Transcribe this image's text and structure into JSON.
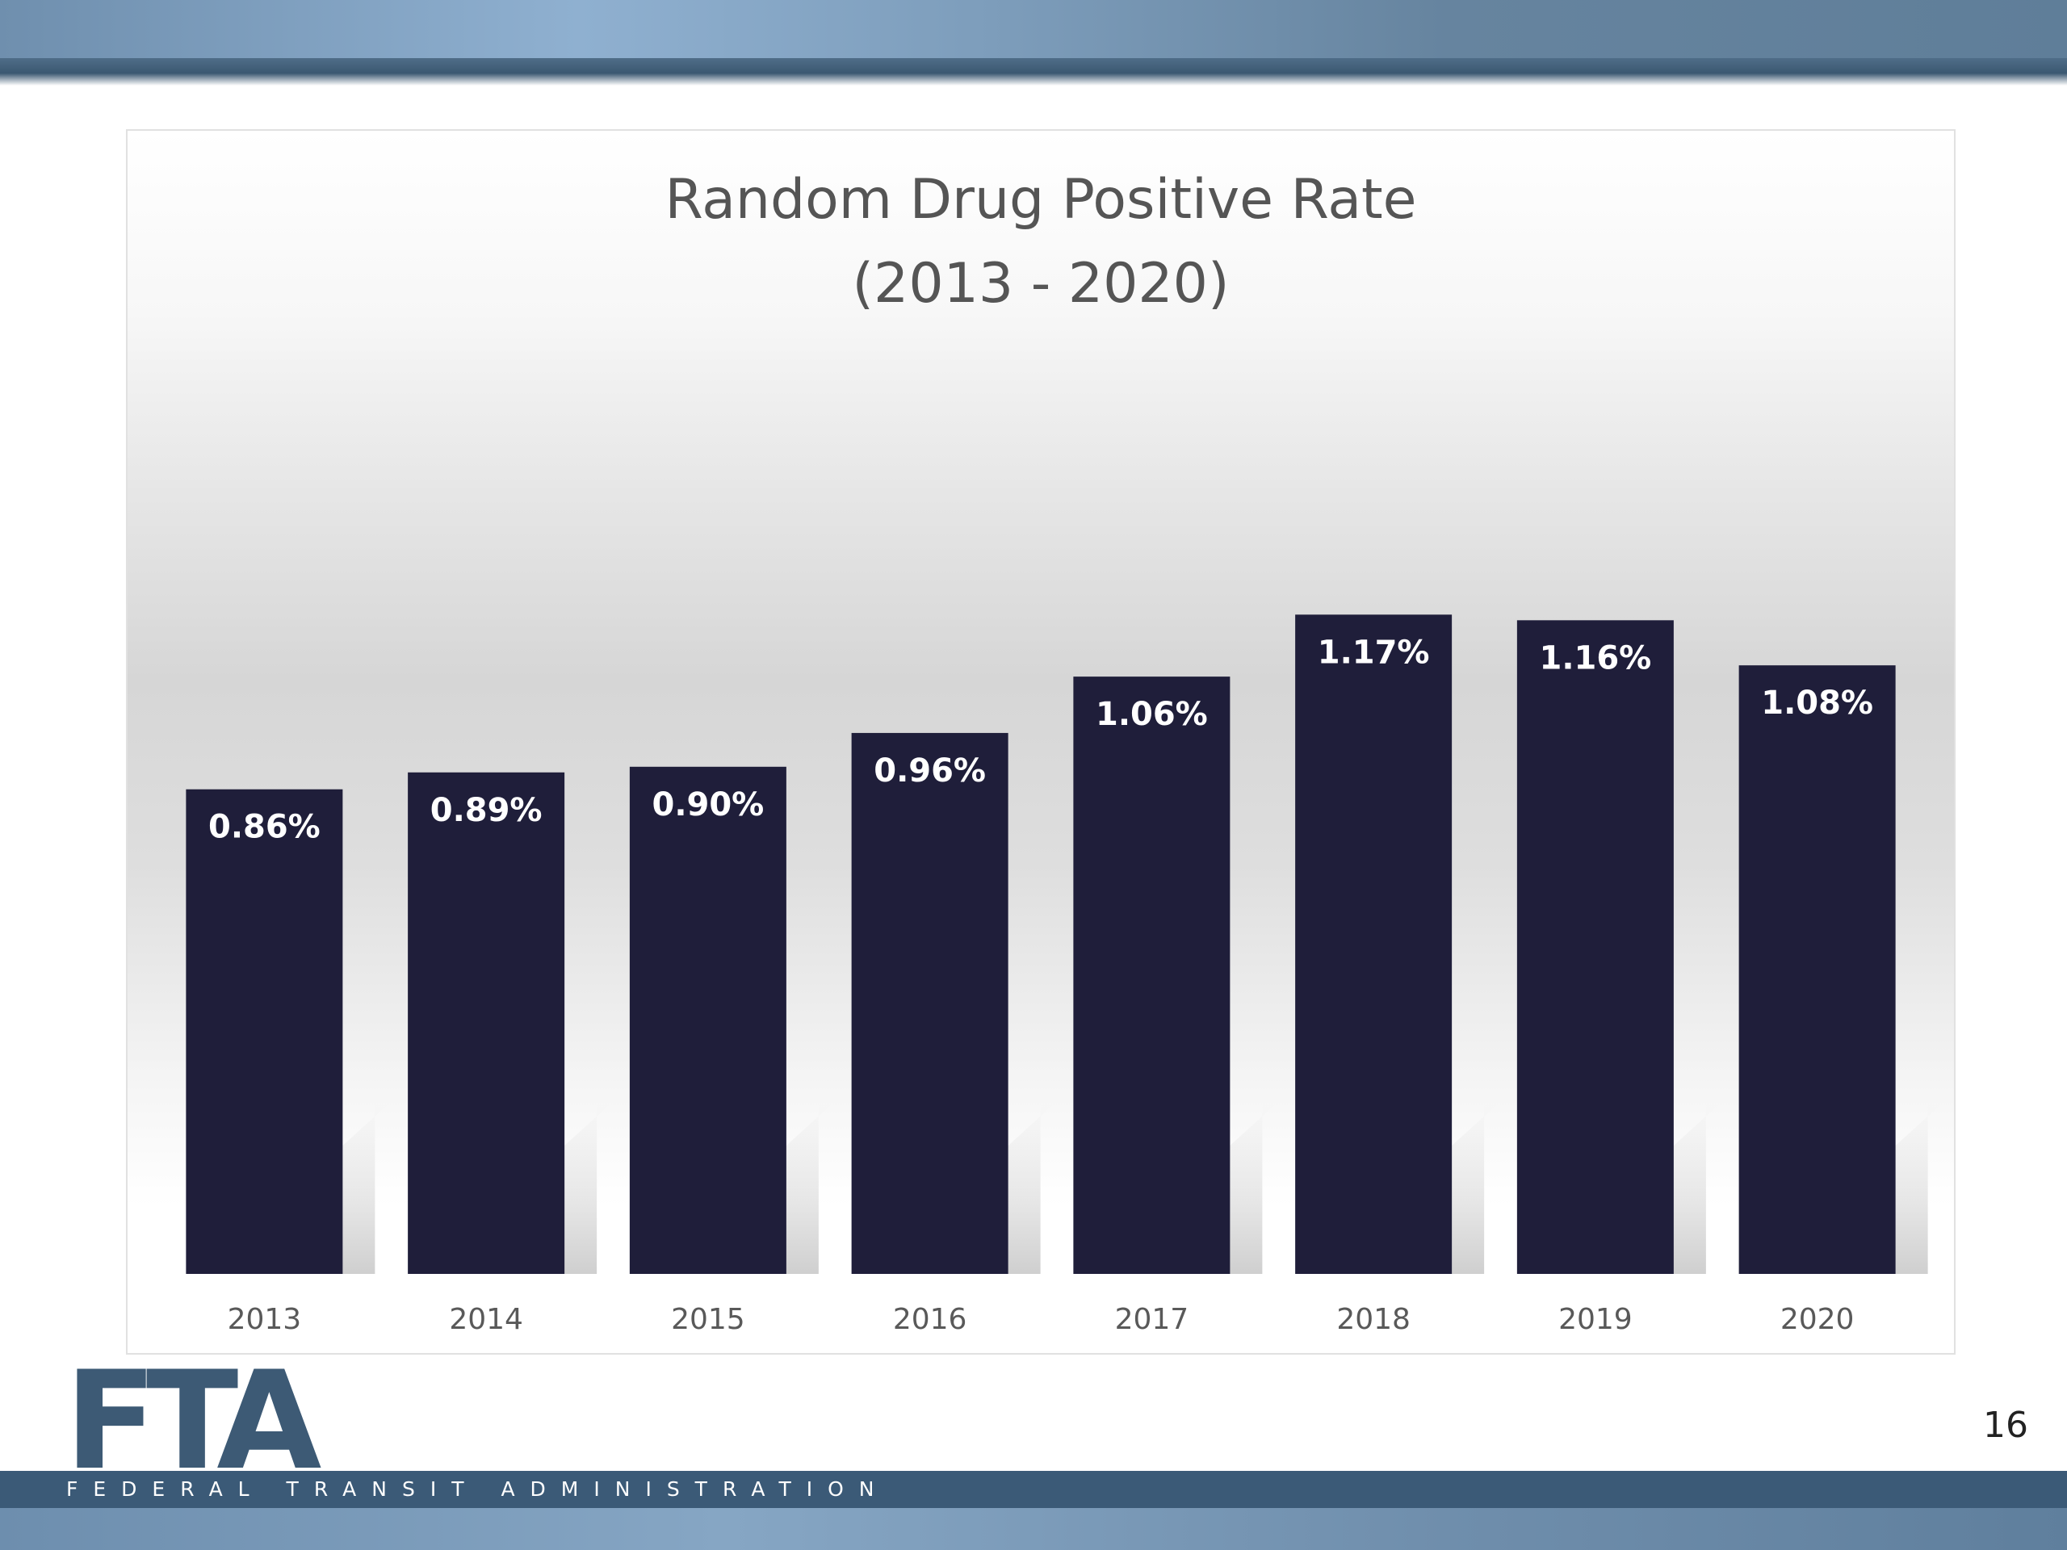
{
  "slide": {
    "logo_text": "FTA",
    "logo_subtitle": "FEDERAL TRANSIT ADMINISTRATION",
    "page_number": "16",
    "colors": {
      "bar": "#1f1e3a",
      "banner": "#6f8fae",
      "footer": "#3b5a77",
      "logo": "#3d5a75"
    }
  },
  "chart_data": {
    "type": "bar",
    "title": "Random Drug Positive Rate",
    "subtitle": "(2013 - 2020)",
    "categories": [
      "2013",
      "2014",
      "2015",
      "2016",
      "2017",
      "2018",
      "2019",
      "2020"
    ],
    "values": [
      0.86,
      0.89,
      0.9,
      0.96,
      1.06,
      1.17,
      1.16,
      1.08
    ],
    "data_labels": [
      "0.86%",
      "0.89%",
      "0.90%",
      "0.96%",
      "1.06%",
      "1.17%",
      "1.16%",
      "1.08%"
    ],
    "xlabel": "",
    "ylabel": "",
    "ylim": [
      0,
      1.4
    ],
    "grid": false,
    "legend": "none",
    "value_axis_shown": false
  }
}
